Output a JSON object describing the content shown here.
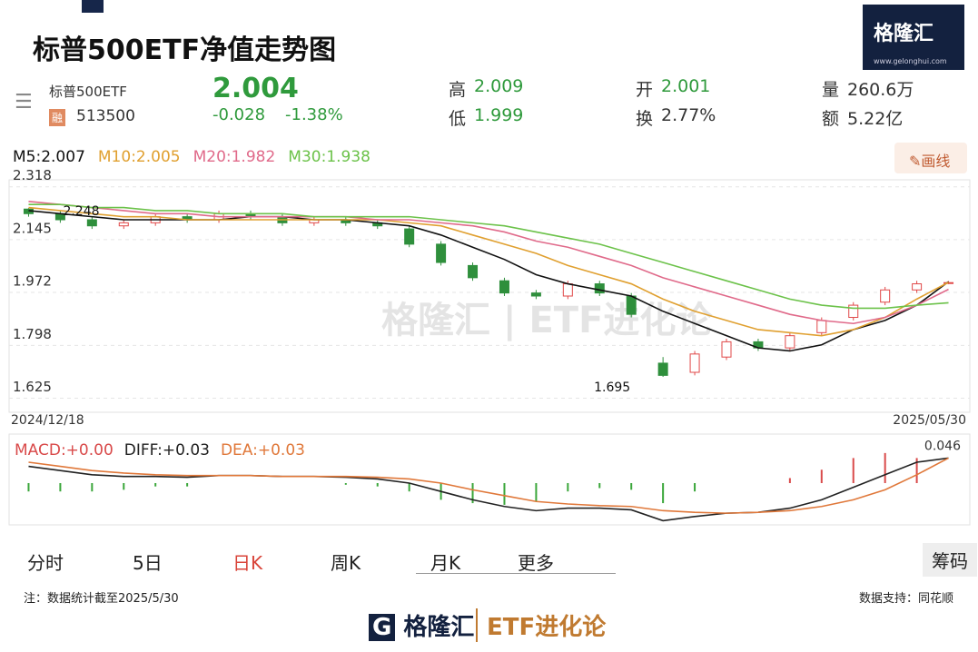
{
  "header": {
    "title": "标普500ETF净值走势图",
    "logo_name": "格隆汇",
    "logo_url": "www.gelonghui.com"
  },
  "quote": {
    "name": "标普500ETF",
    "badge": "融",
    "code": "513500",
    "price": "2.004",
    "change": "-0.028",
    "change_pct": "-1.38%",
    "high_label": "高",
    "high": "2.009",
    "low_label": "低",
    "low": "1.999",
    "open_label": "开",
    "open": "2.001",
    "turnover_label": "换",
    "turnover": "2.77%",
    "volume_label": "量",
    "volume": "260.6万",
    "amount_label": "额",
    "amount": "5.22亿"
  },
  "draw_button": "画线",
  "chart_data": [
    {
      "type": "candlestick",
      "categories": [
        "2024/12/18",
        null,
        null,
        null,
        null,
        null,
        null,
        null,
        null,
        null,
        null,
        null,
        null,
        null,
        null,
        null,
        null,
        null,
        null,
        null,
        null,
        null,
        null,
        null,
        null,
        null,
        null,
        null,
        null,
        "2025/05/30"
      ],
      "open": [
        2.245,
        2.23,
        2.21,
        2.19,
        2.2,
        2.22,
        2.21,
        2.23,
        2.22,
        2.2,
        2.21,
        2.2,
        2.18,
        2.13,
        2.06,
        2.01,
        1.97,
        1.96,
        2.0,
        1.96,
        1.74,
        1.71,
        1.76,
        1.81,
        1.79,
        1.84,
        1.89,
        1.94,
        1.98,
        2.001
      ],
      "high": [
        2.248,
        2.24,
        2.22,
        2.21,
        2.23,
        2.23,
        2.24,
        2.24,
        2.23,
        2.22,
        2.22,
        2.21,
        2.19,
        2.14,
        2.07,
        2.02,
        1.98,
        2.01,
        2.01,
        1.97,
        1.76,
        1.78,
        1.82,
        1.82,
        1.84,
        1.89,
        1.94,
        1.99,
        2.01,
        2.009
      ],
      "low": [
        2.22,
        2.2,
        2.18,
        2.18,
        2.19,
        2.2,
        2.2,
        2.21,
        2.19,
        2.19,
        2.19,
        2.18,
        2.12,
        2.06,
        2.01,
        1.96,
        1.95,
        1.95,
        1.96,
        1.89,
        1.695,
        1.7,
        1.75,
        1.78,
        1.78,
        1.83,
        1.88,
        1.93,
        1.97,
        1.999
      ],
      "close": [
        2.23,
        2.21,
        2.19,
        2.2,
        2.22,
        2.21,
        2.23,
        2.22,
        2.2,
        2.21,
        2.2,
        2.19,
        2.13,
        2.07,
        2.02,
        1.97,
        1.96,
        2.0,
        1.97,
        1.9,
        1.7,
        1.77,
        1.81,
        1.79,
        1.83,
        1.88,
        1.93,
        1.98,
        2.0,
        2.004
      ],
      "up_color": "#e04848",
      "down_color": "#2f8f3c",
      "series": [
        {
          "name": "M5:2.007",
          "color": "#111111",
          "values": [
            2.24,
            2.23,
            2.22,
            2.21,
            2.21,
            2.21,
            2.21,
            2.22,
            2.22,
            2.21,
            2.21,
            2.2,
            2.19,
            2.16,
            2.12,
            2.08,
            2.03,
            2.0,
            1.98,
            1.96,
            1.91,
            1.87,
            1.83,
            1.79,
            1.78,
            1.8,
            1.85,
            1.88,
            1.93,
            2.007
          ]
        },
        {
          "name": "M10:2.005",
          "color": "#e0a030",
          "values": [
            2.25,
            2.24,
            2.23,
            2.22,
            2.22,
            2.21,
            2.21,
            2.21,
            2.21,
            2.21,
            2.21,
            2.21,
            2.2,
            2.19,
            2.16,
            2.13,
            2.1,
            2.06,
            2.03,
            2.0,
            1.95,
            1.91,
            1.88,
            1.85,
            1.84,
            1.83,
            1.85,
            1.89,
            1.95,
            2.005
          ]
        },
        {
          "name": "M20:1.982",
          "color": "#e06a8a",
          "values": [
            2.27,
            2.26,
            2.25,
            2.24,
            2.23,
            2.23,
            2.22,
            2.22,
            2.22,
            2.22,
            2.22,
            2.21,
            2.21,
            2.2,
            2.19,
            2.17,
            2.14,
            2.12,
            2.09,
            2.06,
            2.02,
            1.99,
            1.96,
            1.93,
            1.9,
            1.88,
            1.87,
            1.89,
            1.93,
            1.982
          ]
        },
        {
          "name": "M30:1.938",
          "color": "#6cc24a",
          "values": [
            2.26,
            2.26,
            2.25,
            2.25,
            2.24,
            2.24,
            2.23,
            2.23,
            2.23,
            2.22,
            2.22,
            2.22,
            2.22,
            2.21,
            2.2,
            2.19,
            2.17,
            2.15,
            2.13,
            2.1,
            2.07,
            2.04,
            2.01,
            1.98,
            1.95,
            1.93,
            1.92,
            1.92,
            1.93,
            1.938
          ]
        }
      ],
      "ylim": [
        1.585,
        2.335
      ],
      "yticks": [
        2.318,
        2.145,
        1.972,
        1.798,
        1.625
      ],
      "grid": true,
      "high_annotation": "2.248",
      "low_annotation": "1.695"
    },
    {
      "type": "macd",
      "series": [
        {
          "name": "MACD:+0.00",
          "color": "#d94a4a",
          "negative_color": "#3aa63a",
          "values": [
            -0.01,
            -0.01,
            -0.01,
            -0.008,
            -0.004,
            -0.004,
            0,
            0,
            0,
            0,
            -0.002,
            -0.004,
            -0.01,
            -0.02,
            -0.024,
            -0.026,
            -0.022,
            -0.01,
            -0.006,
            -0.008,
            -0.024,
            -0.01,
            0,
            0,
            0.006,
            0.016,
            0.03,
            0.036,
            0.03,
            0.0
          ]
        },
        {
          "name": "DIFF:+0.03",
          "color": "#222222",
          "values": [
            0.02,
            0.015,
            0.01,
            0.008,
            0.008,
            0.007,
            0.009,
            0.009,
            0.008,
            0.008,
            0.007,
            0.005,
            0.0,
            -0.01,
            -0.02,
            -0.028,
            -0.033,
            -0.03,
            -0.03,
            -0.032,
            -0.045,
            -0.04,
            -0.036,
            -0.035,
            -0.03,
            -0.02,
            -0.005,
            0.01,
            0.025,
            0.03
          ]
        },
        {
          "name": "DEA:+0.03",
          "color": "#e0783a",
          "values": [
            0.025,
            0.02,
            0.015,
            0.012,
            0.01,
            0.009,
            0.009,
            0.009,
            0.008,
            0.008,
            0.008,
            0.007,
            0.005,
            0.0,
            -0.008,
            -0.015,
            -0.022,
            -0.025,
            -0.027,
            -0.028,
            -0.033,
            -0.035,
            -0.036,
            -0.035,
            -0.033,
            -0.028,
            -0.02,
            -0.008,
            0.01,
            0.03
          ]
        }
      ],
      "ylim": [
        -0.05,
        0.05
      ],
      "yticks": [
        0.046
      ]
    }
  ],
  "tabs": [
    "分时",
    "5日",
    "日K",
    "周K",
    "月K",
    "更多",
    "筹码"
  ],
  "footer": {
    "note": "注：数据统计截至2025/5/30",
    "source": "数据支持：同花顺",
    "brand": "格隆汇",
    "column": "ETF进化论"
  }
}
